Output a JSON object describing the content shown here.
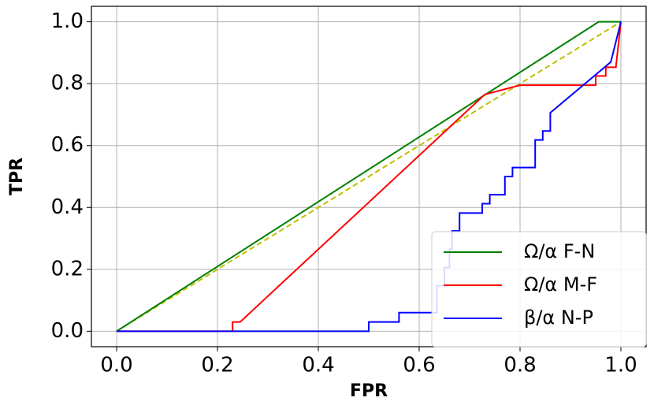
{
  "chart_data": {
    "type": "line",
    "xlabel": "FPR",
    "ylabel": "TPR",
    "xlim": [
      -0.05,
      1.05
    ],
    "ylim": [
      -0.05,
      1.05
    ],
    "xticks": [
      {
        "value": 0,
        "label": "0.0"
      },
      0.2,
      0.4,
      0.6,
      0.8,
      {
        "value": 1,
        "label": "1.0"
      }
    ],
    "yticks": [
      {
        "value": 0,
        "label": "0.0"
      },
      0.2,
      0.4,
      0.6,
      0.8,
      {
        "value": 1,
        "label": "1.0"
      }
    ],
    "grid": true,
    "legend": "lower right",
    "series": [
      {
        "color": "#bfbf00",
        "linestyle": "dashed",
        "x": [
          0,
          1
        ],
        "values": [
          0,
          1
        ]
      },
      {
        "name": "Ω/α F-N",
        "color": "#008000",
        "linestyle": "solid",
        "x": [
          0,
          0.956,
          1
        ],
        "values": [
          0,
          1,
          1
        ]
      },
      {
        "name": "Ω/α M-F",
        "color": "#ff0000",
        "linestyle": "solid",
        "x": [
          0,
          0.23,
          0.23,
          0.245,
          0.73,
          0.8,
          0.95,
          0.95,
          0.97,
          0.97,
          0.99,
          0.99,
          1
        ],
        "values": [
          0,
          0,
          0.03,
          0.03,
          0.765,
          0.795,
          0.795,
          0.825,
          0.825,
          0.853,
          0.853,
          0.853,
          1
        ]
      },
      {
        "name": "β/α N-P",
        "color": "#0000ff",
        "linestyle": "solid",
        "x": [
          0,
          0.5,
          0.5,
          0.56,
          0.56,
          0.635,
          0.635,
          0.65,
          0.65,
          0.66,
          0.66,
          0.665,
          0.665,
          0.68,
          0.68,
          0.725,
          0.725,
          0.74,
          0.74,
          0.77,
          0.77,
          0.785,
          0.785,
          0.83,
          0.83,
          0.845,
          0.845,
          0.86,
          0.86,
          0.98,
          1
        ],
        "values": [
          0,
          0,
          0.03,
          0.03,
          0.06,
          0.06,
          0.147,
          0.147,
          0.206,
          0.206,
          0.265,
          0.265,
          0.324,
          0.324,
          0.382,
          0.382,
          0.412,
          0.412,
          0.441,
          0.441,
          0.5,
          0.5,
          0.529,
          0.529,
          0.618,
          0.618,
          0.647,
          0.647,
          0.706,
          0.87,
          1
        ]
      }
    ]
  }
}
